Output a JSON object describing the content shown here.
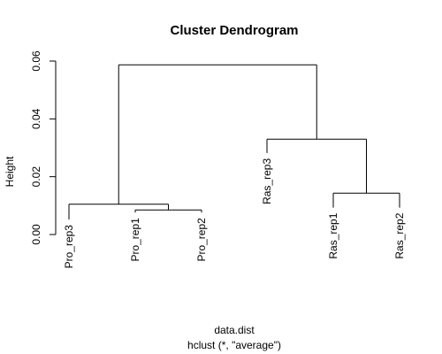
{
  "chart_data": {
    "type": "dendrogram",
    "title": "Cluster Dendrogram",
    "ylabel": "Height",
    "xlabel": "data.dist",
    "sublabel": "hclust (*, \"average\")",
    "ylim": [
      0,
      0.06
    ],
    "yticks": [
      0.0,
      0.02,
      0.04,
      0.06
    ],
    "ytick_labels": [
      "0.00",
      "0.02",
      "0.04",
      "0.06"
    ],
    "leaves": [
      {
        "label": "Pro_rep3",
        "height": 0.0052
      },
      {
        "label": "Pro_rep1",
        "height": 0.0076
      },
      {
        "label": "Pro_rep2",
        "height": 0.0076
      },
      {
        "label": "Ras_rep3",
        "height": 0.0282
      },
      {
        "label": "Ras_rep1",
        "height": 0.0093
      },
      {
        "label": "Ras_rep2",
        "height": 0.0093
      }
    ],
    "merges": [
      {
        "left": "leaf:1",
        "right": "leaf:2",
        "height": 0.0085
      },
      {
        "left": "leaf:0",
        "right": "merge:0",
        "height": 0.0105
      },
      {
        "left": "leaf:4",
        "right": "leaf:5",
        "height": 0.0143
      },
      {
        "left": "leaf:3",
        "right": "merge:2",
        "height": 0.033
      },
      {
        "left": "merge:1",
        "right": "merge:3",
        "height": 0.0587
      }
    ]
  }
}
